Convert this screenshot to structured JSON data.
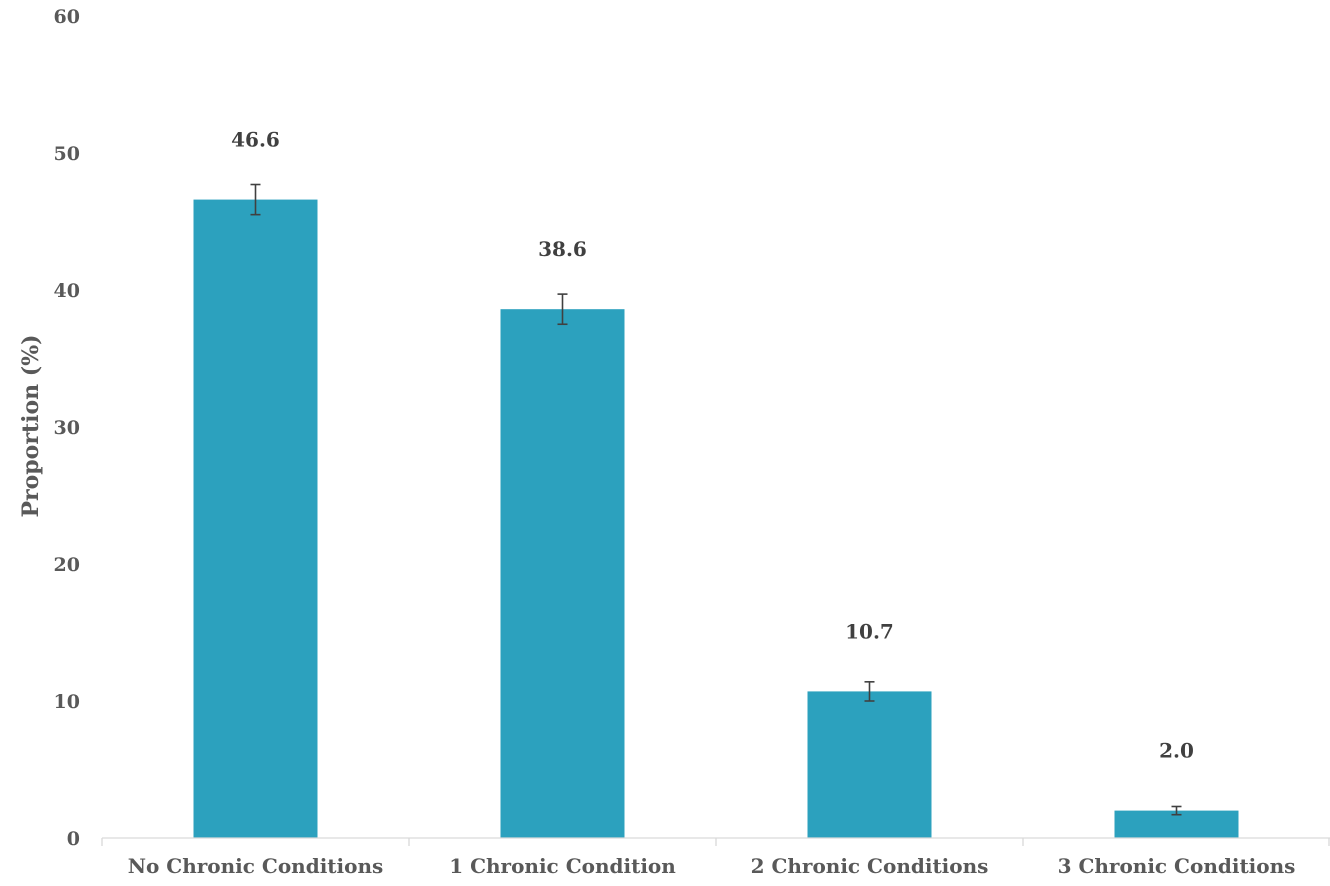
{
  "chart_data": {
    "type": "bar",
    "categories": [
      "No Chronic Conditions",
      "1 Chronic Condition",
      "2 Chronic Conditions",
      "3 Chronic Conditions"
    ],
    "values": [
      46.6,
      38.6,
      10.7,
      2.0
    ],
    "data_labels": [
      "46.6",
      "38.6",
      "10.7",
      "2.0"
    ],
    "error_bars": [
      {
        "low": 45.5,
        "high": 47.7
      },
      {
        "low": 37.5,
        "high": 39.7
      },
      {
        "low": 10.0,
        "high": 11.4
      },
      {
        "low": 1.7,
        "high": 2.3
      }
    ],
    "ylabel": "Proportion (%)",
    "xlabel": "",
    "ylim": [
      0,
      60
    ],
    "yticks": [
      0,
      10,
      20,
      30,
      40,
      50,
      60
    ],
    "grid": false,
    "legend": "none",
    "colors": {
      "bar": "#2ca1be",
      "error_bar": "#404040",
      "axis": "#d9d9d9"
    }
  }
}
